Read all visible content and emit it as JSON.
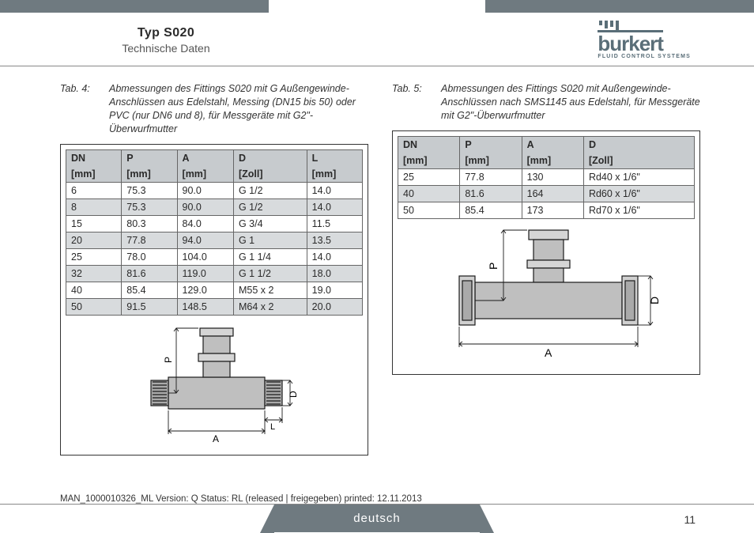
{
  "header": {
    "title": "Typ S020",
    "subtitle": "Technische Daten",
    "logo_text": "burkert",
    "logo_sub": "FLUID CONTROL SYSTEMS"
  },
  "left": {
    "cap_num": "Tab. 4:",
    "cap_text": "Abmessungen des Fittings S020 mit G Außengewinde-Anschlüssen aus Edelstahl, Messing (DN15 bis 50) oder PVC (nur DN6 und 8), für Messgeräte mit G2\"-Überwurfmutter",
    "head1": [
      "DN",
      "P",
      "A",
      "D",
      "L"
    ],
    "head2": [
      "[mm]",
      "[mm]",
      "[mm]",
      "[Zoll]",
      "[mm]"
    ],
    "rows": [
      [
        "6",
        "75.3",
        "90.0",
        "G 1/2",
        "14.0"
      ],
      [
        "8",
        "75.3",
        "90.0",
        "G 1/2",
        "14.0"
      ],
      [
        "15",
        "80.3",
        "84.0",
        "G 3/4",
        "11.5"
      ],
      [
        "20",
        "77.8",
        "94.0",
        "G 1",
        "13.5"
      ],
      [
        "25",
        "78.0",
        "104.0",
        "G 1 1/4",
        "14.0"
      ],
      [
        "32",
        "81.6",
        "119.0",
        "G 1 1/2",
        "18.0"
      ],
      [
        "40",
        "85.4",
        "129.0",
        "M55 x 2",
        "19.0"
      ],
      [
        "50",
        "91.5",
        "148.5",
        "M64 x 2",
        "20.0"
      ]
    ],
    "dim_labels": {
      "P": "P",
      "A": "A",
      "D": "D",
      "L": "L"
    }
  },
  "right": {
    "cap_num": "Tab. 5:",
    "cap_text": "Abmessungen des Fittings S020 mit Außengewinde-Anschlüssen nach SMS1145 aus Edelstahl, für Messgeräte mit G2\"-Überwurfmutter",
    "head1": [
      "DN",
      "P",
      "A",
      "D"
    ],
    "head2": [
      "[mm]",
      "[mm]",
      "[mm]",
      "[Zoll]"
    ],
    "rows": [
      [
        "25",
        "77.8",
        "130",
        "Rd40 x 1/6\""
      ],
      [
        "40",
        "81.6",
        "164",
        "Rd60 x 1/6\""
      ],
      [
        "50",
        "85.4",
        "173",
        "Rd70 x 1/6\""
      ]
    ],
    "dim_labels": {
      "P": "P",
      "A": "A",
      "D": "D"
    }
  },
  "footer": {
    "meta": "MAN_1000010326_ML  Version: Q Status: RL (released | freigegeben)  printed: 12.11.2013",
    "lang": "deutsch",
    "page": "11"
  },
  "colors": {
    "accent": "#6f7a80",
    "header_bg": "#c7cbce",
    "row_alt": "#d8dbdd"
  }
}
